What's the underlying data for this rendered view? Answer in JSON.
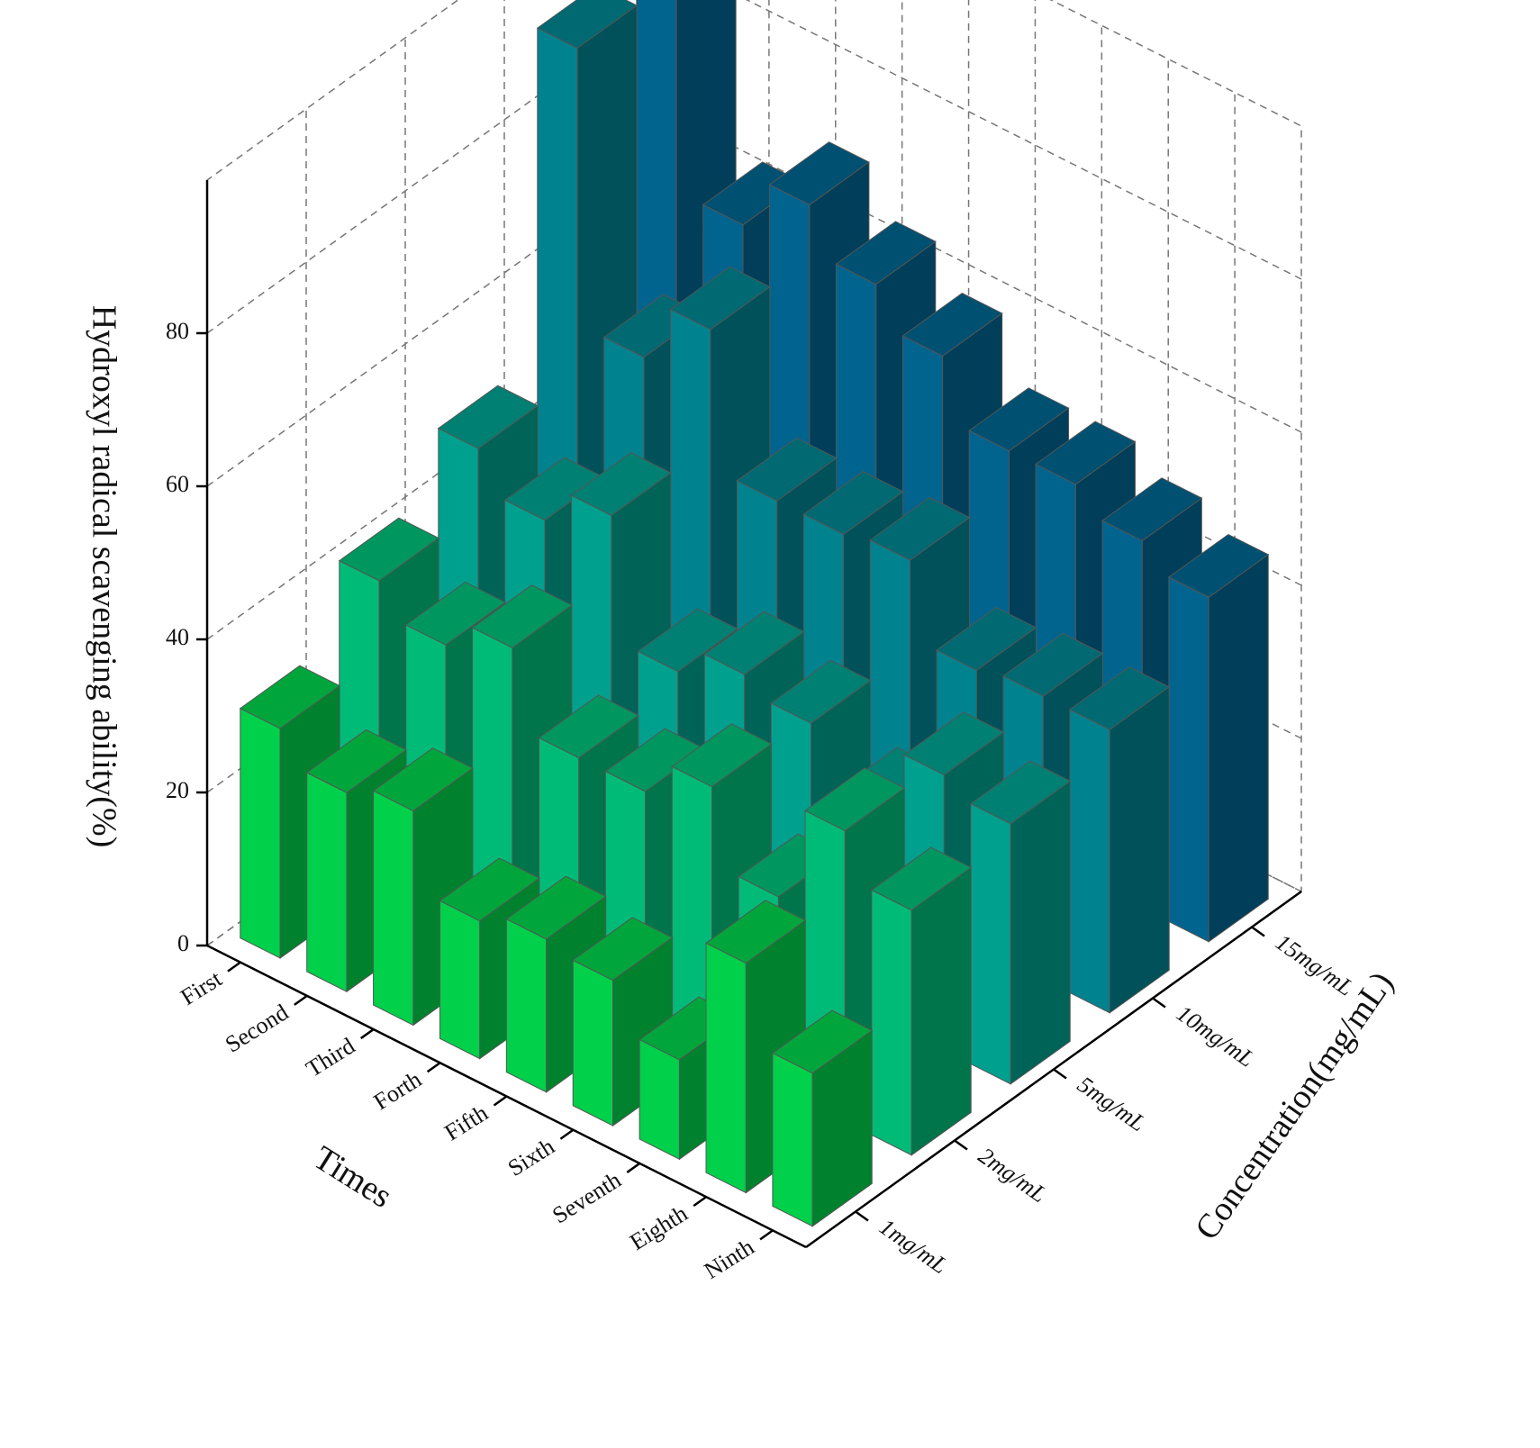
{
  "chart_data": {
    "type": "bar3d",
    "ylabel": "Hydroxyl radical scavenging ability(%)",
    "xlabel": "Times",
    "zlabel": "Concentration(mg/mL)",
    "categories": [
      "First",
      "Second",
      "Third",
      "Forth",
      "Fifth",
      "Sixth",
      "Seventh",
      "Eighth",
      "Ninth"
    ],
    "series": [
      {
        "name": "1mg/mL",
        "color": "#00d04a",
        "values": [
          30,
          26,
          28,
          18,
          20,
          19,
          13,
          30,
          20
        ]
      },
      {
        "name": "2mg/mL",
        "color": "#00bb78",
        "values": [
          40,
          36,
          40,
          30,
          30,
          35,
          25,
          38,
          32
        ]
      },
      {
        "name": "5mg/mL",
        "color": "#00a08e",
        "values": [
          48,
          43,
          48,
          32,
          36,
          34,
          27,
          36,
          34
        ]
      },
      {
        "name": "10mg/mL",
        "color": "#00838f",
        "values": [
          91,
          55,
          63,
          45,
          45,
          46,
          36,
          37,
          37
        ]
      },
      {
        "name": "15mg/mL",
        "color": "#00648f",
        "values": [
          98,
          63,
          70,
          64,
          59,
          51,
          51,
          48,
          45
        ]
      }
    ],
    "ylim": [
      0,
      100
    ],
    "yticks": [
      0,
      20,
      40,
      60,
      80
    ],
    "grid": true
  }
}
